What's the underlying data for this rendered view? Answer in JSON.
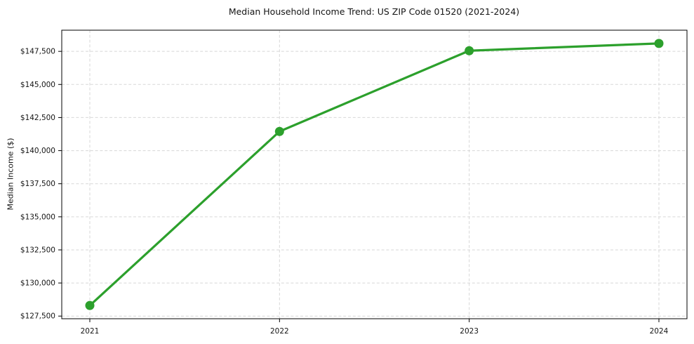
{
  "chart_data": {
    "type": "line",
    "title": "Median Household Income Trend: US ZIP Code 01520 (2021-2024)",
    "xlabel": "",
    "ylabel": "Median Income ($)",
    "x": [
      "2021",
      "2022",
      "2023",
      "2024"
    ],
    "series": [
      {
        "name": "Median Household Income",
        "values": [
          128300,
          141450,
          147550,
          148100
        ]
      }
    ],
    "ylim": [
      127300,
      149100
    ],
    "yticks": [
      127500,
      130000,
      132500,
      135000,
      137500,
      140000,
      142500,
      145000,
      147500
    ],
    "ytick_labels": [
      "$127,500",
      "$130,000",
      "$132,500",
      "$135,000",
      "$137,500",
      "$140,000",
      "$142,500",
      "$145,000",
      "$147,500"
    ],
    "xtick_labels": [
      "2021",
      "2022",
      "2023",
      "2024"
    ],
    "grid": true,
    "grid_style": "dashed",
    "legend": false,
    "marker": "circle"
  },
  "colors": {
    "background": "#ffffff",
    "line": "#2ca02c",
    "marker": "#2ca02c",
    "grid": "#d7d7d7",
    "axis": "#000000",
    "text": "#141414"
  }
}
